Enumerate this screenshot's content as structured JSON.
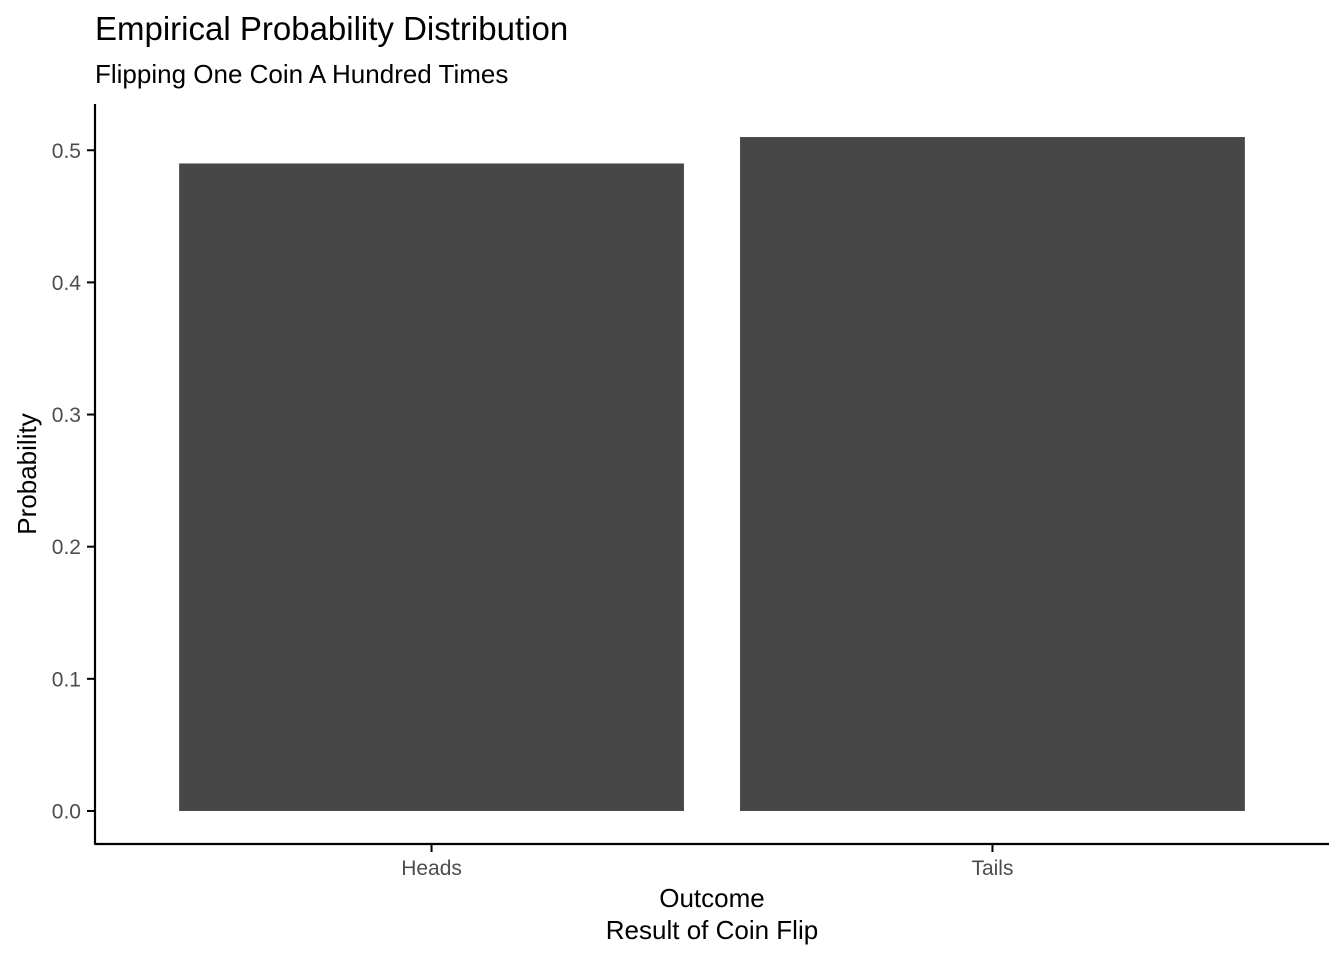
{
  "chart_data": {
    "type": "bar",
    "title": "Empirical Probability Distribution",
    "subtitle": "Flipping One Coin A Hundred Times",
    "xlabel": "Outcome",
    "xlabel_sub": "Result of Coin Flip",
    "ylabel": "Probability",
    "categories": [
      "Heads",
      "Tails"
    ],
    "values": [
      0.49,
      0.51
    ],
    "ylim": [
      -0.025,
      0.535
    ],
    "yticks": [
      0.0,
      0.1,
      0.2,
      0.3,
      0.4,
      0.5
    ],
    "ytick_labels": [
      "0.0",
      "0.1",
      "0.2",
      "0.3",
      "0.4",
      "0.5"
    ],
    "grid": false,
    "bar_color": "#474747",
    "axis_color": "#000000",
    "tick_label_color": "#4d4d4d"
  }
}
